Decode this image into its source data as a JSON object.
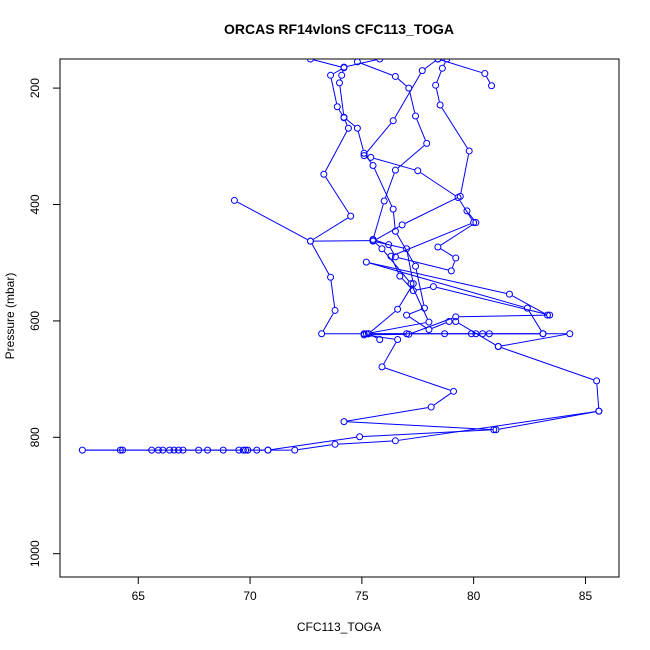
{
  "chart_data": {
    "type": "line",
    "title": "ORCAS RF14vlonS CFC113_TOGA",
    "xlabel": "CFC113_TOGA",
    "ylabel": "Pressure (mbar)",
    "xlim": [
      61.5,
      86.5
    ],
    "ylim": [
      1040,
      150
    ],
    "y_reversed": true,
    "x_ticks": [
      65,
      70,
      75,
      80,
      85
    ],
    "y_ticks": [
      200,
      400,
      600,
      800,
      1000
    ],
    "grid": false,
    "legend": "none",
    "color": "#0000ff",
    "marker": "open-circle",
    "series": [
      {
        "values": [
          [
            72.7,
            150
          ],
          [
            74.2,
            165
          ],
          [
            73.6,
            178
          ],
          [
            73.9,
            232
          ],
          [
            74.2,
            251
          ],
          [
            74.4,
            269
          ],
          [
            73.3,
            348
          ],
          [
            74.5,
            420
          ],
          [
            72.7,
            463
          ],
          [
            73.6,
            525
          ],
          [
            73.8,
            582
          ],
          [
            73.2,
            622
          ],
          [
            75.1,
            622
          ],
          [
            75.3,
            622
          ],
          [
            77.0,
            622
          ],
          [
            78.7,
            622
          ],
          [
            79.9,
            622
          ],
          [
            80.1,
            622
          ],
          [
            80.4,
            622
          ],
          [
            80.7,
            622
          ],
          [
            83.1,
            622
          ],
          [
            84.3,
            622
          ],
          [
            81.1,
            644
          ],
          [
            85.5,
            703
          ],
          [
            85.6,
            755
          ],
          [
            81.0,
            787
          ],
          [
            74.2,
            773
          ],
          [
            78.1,
            748
          ],
          [
            79.1,
            721
          ],
          [
            75.9,
            679
          ],
          [
            76.6,
            632
          ],
          [
            75.1,
            624
          ],
          [
            77.1,
            623
          ],
          [
            79.2,
            593
          ],
          [
            83.4,
            590
          ],
          [
            78.2,
            541
          ],
          [
            77.3,
            548
          ],
          [
            76.7,
            523
          ],
          [
            76.3,
            489
          ],
          [
            80.0,
            431
          ],
          [
            79.3,
            388
          ],
          [
            77.5,
            342
          ],
          [
            75.4,
            319
          ],
          [
            75.1,
            316
          ],
          [
            76.4,
            256
          ],
          [
            77.7,
            170
          ],
          [
            78.4,
            150
          ]
        ]
      },
      {
        "values": [
          [
            69.3,
            393
          ],
          [
            72.7,
            463
          ],
          [
            75.5,
            462
          ],
          [
            75.9,
            476
          ],
          [
            77.2,
            536
          ],
          [
            78.0,
            602
          ],
          [
            75.2,
            622
          ],
          [
            83.1,
            622
          ],
          [
            82.4,
            578
          ],
          [
            75.2,
            499
          ],
          [
            81.6,
            554
          ],
          [
            83.3,
            590
          ]
        ]
      },
      {
        "values": [
          [
            74.8,
            155
          ],
          [
            76.5,
            180
          ],
          [
            77.1,
            200
          ],
          [
            77.4,
            248
          ],
          [
            77.9,
            295
          ],
          [
            76.5,
            341
          ],
          [
            76.0,
            394
          ],
          [
            75.5,
            460
          ],
          [
            76.2,
            469
          ],
          [
            76.5,
            490
          ],
          [
            79.0,
            514
          ],
          [
            79.2,
            492
          ],
          [
            78.4,
            473
          ],
          [
            80.1,
            431
          ],
          [
            79.7,
            411
          ]
        ]
      },
      {
        "values": [
          [
            75.8,
            150
          ],
          [
            74.2,
            164
          ],
          [
            74.1,
            178
          ],
          [
            74.0,
            191
          ],
          [
            74.2,
            250
          ],
          [
            74.8,
            269
          ],
          [
            75.1,
            312
          ],
          [
            75.5,
            333
          ],
          [
            76.4,
            408
          ],
          [
            76.5,
            446
          ],
          [
            77.4,
            506
          ],
          [
            77.8,
            578
          ],
          [
            77.0,
            590
          ],
          [
            78.0,
            615
          ],
          [
            78.9,
            601
          ],
          [
            79.2,
            601
          ],
          [
            81.1,
            644
          ]
        ]
      },
      {
        "values": [
          [
            78.8,
            150
          ],
          [
            78.6,
            166
          ],
          [
            78.3,
            195
          ],
          [
            78.5,
            229
          ],
          [
            79.8,
            308
          ],
          [
            79.4,
            386
          ],
          [
            76.8,
            435
          ],
          [
            75.5,
            463
          ],
          [
            77.0,
            476
          ],
          [
            77.3,
            536
          ],
          [
            76.6,
            580
          ],
          [
            75.3,
            622
          ],
          [
            75.8,
            632
          ]
        ]
      },
      {
        "values": [
          [
            78.4,
            150
          ],
          [
            80.5,
            175
          ],
          [
            80.8,
            196
          ]
        ]
      },
      {
        "values": [
          [
            85.6,
            755
          ],
          [
            76.5,
            806
          ],
          [
            73.8,
            812
          ],
          [
            72.0,
            822
          ],
          [
            70.8,
            822
          ],
          [
            70.3,
            822
          ],
          [
            69.9,
            822
          ],
          [
            69.7,
            822
          ],
          [
            69.5,
            822
          ],
          [
            68.8,
            822
          ],
          [
            68.1,
            822
          ],
          [
            67.7,
            822
          ],
          [
            67.0,
            822
          ],
          [
            66.8,
            822
          ],
          [
            66.6,
            822
          ],
          [
            66.4,
            822
          ],
          [
            66.1,
            822
          ],
          [
            65.9,
            822
          ],
          [
            65.6,
            822
          ],
          [
            64.3,
            822
          ],
          [
            64.2,
            822
          ],
          [
            62.5,
            822
          ],
          [
            69.8,
            822
          ],
          [
            70.8,
            822
          ],
          [
            74.9,
            799
          ],
          [
            80.9,
            787
          ]
        ]
      }
    ]
  }
}
